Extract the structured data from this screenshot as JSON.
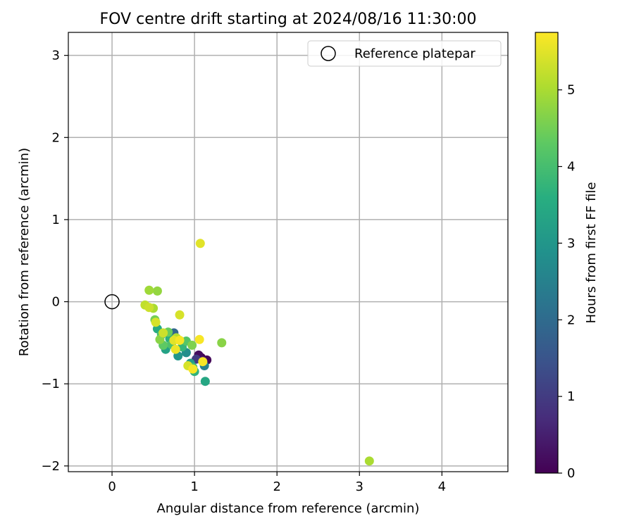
{
  "chart_data": {
    "type": "scatter",
    "title": "FOV centre drift starting at 2024/08/16 11:30:00",
    "xlabel": "Angular distance from reference (arcmin)",
    "ylabel": "Rotation from reference (arcmin)",
    "xlim": [
      -0.53,
      4.8
    ],
    "ylim": [
      -2.07,
      3.28
    ],
    "xticks": [
      0,
      1,
      2,
      3,
      4
    ],
    "yticks": [
      -2,
      -1,
      0,
      1,
      2,
      3
    ],
    "grid": true,
    "legend": {
      "placement": "top-right",
      "entries": [
        "Reference platepar"
      ]
    },
    "colorbar": {
      "label": "Hours from first FF file",
      "range": [
        0,
        5.75
      ],
      "ticks": [
        0,
        1,
        2,
        3,
        4,
        5
      ],
      "colormap": "viridis"
    },
    "reference_point": {
      "x": 0,
      "y": 0,
      "name": "Reference platepar"
    },
    "points": [
      {
        "x": 1.08,
        "y": -0.68,
        "t": 0.0
      },
      {
        "x": 1.15,
        "y": -0.71,
        "t": 0.1
      },
      {
        "x": 1.05,
        "y": -0.65,
        "t": 0.2
      },
      {
        "x": 1.1,
        "y": -0.72,
        "t": 0.4
      },
      {
        "x": 1.02,
        "y": -0.7,
        "t": 1.0
      },
      {
        "x": 0.75,
        "y": -0.38,
        "t": 1.9
      },
      {
        "x": 1.12,
        "y": -0.78,
        "t": 2.5
      },
      {
        "x": 0.9,
        "y": -0.62,
        "t": 2.8
      },
      {
        "x": 0.8,
        "y": -0.66,
        "t": 3.0
      },
      {
        "x": 0.95,
        "y": -0.75,
        "t": 3.2
      },
      {
        "x": 0.65,
        "y": -0.58,
        "t": 3.3
      },
      {
        "x": 1.13,
        "y": -0.97,
        "t": 3.4
      },
      {
        "x": 0.55,
        "y": -0.33,
        "t": 3.5
      },
      {
        "x": 0.7,
        "y": -0.45,
        "t": 3.6
      },
      {
        "x": 1.0,
        "y": -0.85,
        "t": 3.7
      },
      {
        "x": 0.85,
        "y": -0.55,
        "t": 3.8
      },
      {
        "x": 0.98,
        "y": -0.8,
        "t": 3.9
      },
      {
        "x": 0.6,
        "y": -0.4,
        "t": 4.0
      },
      {
        "x": 0.72,
        "y": -0.52,
        "t": 4.1
      },
      {
        "x": 0.9,
        "y": -0.48,
        "t": 4.2
      },
      {
        "x": 0.62,
        "y": -0.53,
        "t": 4.3
      },
      {
        "x": 0.68,
        "y": -0.37,
        "t": 4.4
      },
      {
        "x": 0.52,
        "y": -0.22,
        "t": 4.5
      },
      {
        "x": 0.97,
        "y": -0.53,
        "t": 4.6
      },
      {
        "x": 0.58,
        "y": -0.46,
        "t": 4.7
      },
      {
        "x": 1.33,
        "y": -0.5,
        "t": 4.7
      },
      {
        "x": 0.55,
        "y": 0.13,
        "t": 4.8
      },
      {
        "x": 0.45,
        "y": 0.14,
        "t": 4.9
      },
      {
        "x": 0.5,
        "y": -0.08,
        "t": 5.0
      },
      {
        "x": 3.12,
        "y": -1.94,
        "t": 5.0
      },
      {
        "x": 0.78,
        "y": -0.44,
        "t": 5.1
      },
      {
        "x": 0.4,
        "y": -0.04,
        "t": 5.2
      },
      {
        "x": 0.62,
        "y": -0.38,
        "t": 5.3
      },
      {
        "x": 0.45,
        "y": -0.07,
        "t": 5.3
      },
      {
        "x": 0.82,
        "y": -0.16,
        "t": 5.4
      },
      {
        "x": 0.53,
        "y": -0.25,
        "t": 5.4
      },
      {
        "x": 0.92,
        "y": -0.78,
        "t": 5.4
      },
      {
        "x": 0.75,
        "y": -0.47,
        "t": 5.5
      },
      {
        "x": 1.07,
        "y": 0.71,
        "t": 5.5
      },
      {
        "x": 0.77,
        "y": -0.58,
        "t": 5.6
      },
      {
        "x": 1.06,
        "y": -0.46,
        "t": 5.7
      },
      {
        "x": 0.82,
        "y": -0.47,
        "t": 5.7
      },
      {
        "x": 0.98,
        "y": -0.82,
        "t": 5.7
      },
      {
        "x": 1.1,
        "y": -0.73,
        "t": 5.7
      }
    ]
  }
}
